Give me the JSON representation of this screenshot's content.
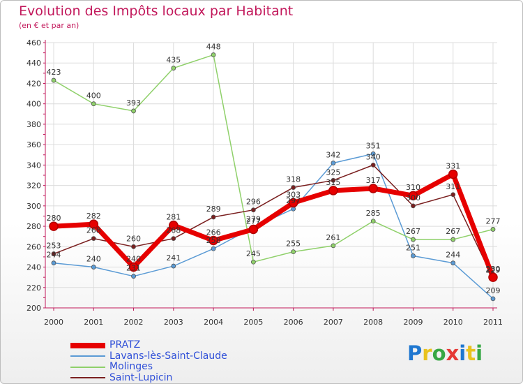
{
  "header": {
    "title": "Evolution des Impôts locaux par Habitant",
    "subtitle": "(en € et par an)"
  },
  "logo": {
    "text": "Proxiti",
    "colors": [
      "#1f77d0",
      "#e8c21e",
      "#37a744",
      "#e53935",
      "#1f77d0",
      "#e8c21e",
      "#37a744"
    ]
  },
  "colors": {
    "title": "#c2185b",
    "axis": "#c2185b",
    "legend_text": "#2f4fd8"
  },
  "chart_data": {
    "type": "line",
    "title": "Evolution des Impôts locaux par Habitant",
    "subtitle": "(en € et par an)",
    "xlabel": "",
    "ylabel": "",
    "categories": [
      "2000",
      "2001",
      "2002",
      "2003",
      "2004",
      "2005",
      "2006",
      "2007",
      "2008",
      "2009",
      "2010",
      "2011"
    ],
    "ylim": [
      200,
      460
    ],
    "yticks": [
      200,
      220,
      240,
      260,
      280,
      300,
      320,
      340,
      360,
      380,
      400,
      420,
      440,
      460
    ],
    "grid": true,
    "legend_position": "bottom-left",
    "series": [
      {
        "name": "PRATZ",
        "color": "#e60000",
        "width": 7,
        "values": [
          280,
          282,
          240,
          281,
          266,
          277,
          303,
          315,
          317,
          310,
          331,
          230
        ],
        "labels": [
          "280",
          "282",
          "240",
          "281",
          "266",
          "277",
          "303",
          "315",
          "317",
          "310",
          "331",
          "230"
        ]
      },
      {
        "name": "Lavans-lès-Saint-Claude",
        "color": "#5b9bd5",
        "width": 1.5,
        "values": [
          244,
          240,
          231,
          241,
          258,
          279,
          297,
          342,
          351,
          251,
          244,
          209
        ],
        "labels": [
          "244",
          "240",
          "231",
          "241",
          "258",
          "279",
          "297",
          "342",
          "351",
          "251",
          "244",
          "209"
        ]
      },
      {
        "name": "Molinges",
        "color": "#8fd06a",
        "width": 1.5,
        "values": [
          423,
          400,
          393,
          435,
          448,
          245,
          255,
          261,
          285,
          267,
          267,
          277
        ],
        "labels": [
          "423",
          "400",
          "393",
          "435",
          "448",
          "245",
          "255",
          "261",
          "285",
          "267",
          "267",
          "277"
        ]
      },
      {
        "name": "Saint-Lupicin",
        "color": "#7a1f1f",
        "width": 1.5,
        "values": [
          253,
          268,
          260,
          268,
          289,
          296,
          318,
          325,
          340,
          300,
          311,
          229
        ],
        "labels": [
          "253",
          "268",
          "260",
          "268",
          "289",
          "296",
          "318",
          "325",
          "340",
          "300",
          "311",
          "229"
        ]
      }
    ]
  }
}
